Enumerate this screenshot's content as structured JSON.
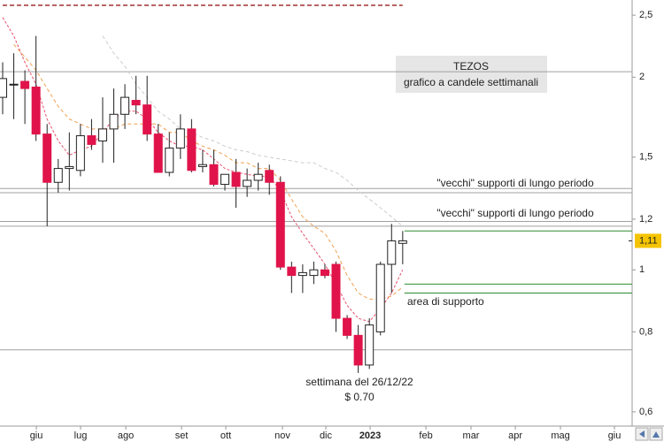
{
  "chart_data": {
    "type": "candlestick",
    "title": "TEZOS",
    "subtitle": "grafico a candele settimanali",
    "annotations": [
      "\"vecchi\" supporti di lungo periodo",
      "\"vecchi\" supporti di lungo periodo",
      "area di supporto",
      "settimana del 26/12/22",
      "$ 0.70"
    ],
    "categories": [
      null,
      null,
      null,
      null,
      null,
      null,
      null,
      null,
      null,
      null,
      null,
      null,
      null,
      null,
      null,
      null,
      null,
      null,
      null,
      null,
      null,
      null,
      null,
      null,
      null,
      null,
      null,
      null,
      null,
      null,
      null,
      null,
      null,
      null,
      null,
      null,
      null
    ],
    "open": [
      1.86,
      1.95,
      1.97,
      1.93,
      1.63,
      1.37,
      1.44,
      1.43,
      1.62,
      1.59,
      1.66,
      1.75,
      1.84,
      1.81,
      1.63,
      1.42,
      1.55,
      1.66,
      1.45,
      1.46,
      1.36,
      1.42,
      1.35,
      1.38,
      1.43,
      1.37,
      1.01,
      0.98,
      0.98,
      1.0,
      1.02,
      0.84,
      0.79,
      0.71,
      0.8,
      1.02,
      1.1
    ],
    "high": [
      2.11,
      2.18,
      2.05,
      2.32,
      1.69,
      1.49,
      1.64,
      1.69,
      1.72,
      1.86,
      1.92,
      1.95,
      2.01,
      2.01,
      1.69,
      1.64,
      1.75,
      1.72,
      1.54,
      1.54,
      1.41,
      1.49,
      1.44,
      1.47,
      1.46,
      1.4,
      1.03,
      1.02,
      1.03,
      1.02,
      1.03,
      0.85,
      0.82,
      0.84,
      1.03,
      1.18,
      1.15
    ],
    "low": [
      1.75,
      1.72,
      1.69,
      1.59,
      1.17,
      1.32,
      1.33,
      1.4,
      1.54,
      1.47,
      1.47,
      1.66,
      1.75,
      1.59,
      1.42,
      1.4,
      1.49,
      1.42,
      1.42,
      1.35,
      1.33,
      1.25,
      1.3,
      1.33,
      1.31,
      1.0,
      0.92,
      0.92,
      0.95,
      0.97,
      0.8,
      0.78,
      0.69,
      0.7,
      0.79,
      0.92,
      1.02
    ],
    "close": [
      1.99,
      1.95,
      1.92,
      1.63,
      1.37,
      1.44,
      1.45,
      1.62,
      1.57,
      1.66,
      1.75,
      1.86,
      1.81,
      1.63,
      1.42,
      1.55,
      1.66,
      1.43,
      1.46,
      1.36,
      1.41,
      1.35,
      1.38,
      1.41,
      1.37,
      1.01,
      0.98,
      0.99,
      1.0,
      0.98,
      0.84,
      0.79,
      0.71,
      0.82,
      1.02,
      1.11,
      1.11
    ],
    "up_color": "#ffffff",
    "down_color": "#e0144a",
    "series": [
      {
        "color": "#e8506e",
        "values": [
          2.48,
          2.32,
          2.11,
          1.95,
          1.72,
          1.59,
          1.51,
          1.54,
          1.56,
          1.64,
          1.72,
          1.77,
          1.77,
          1.72,
          1.64,
          1.59,
          1.56,
          1.56,
          1.54,
          1.49,
          1.44,
          1.42,
          1.41,
          1.4,
          1.4,
          1.33,
          1.21,
          1.14,
          1.08,
          1.02,
          0.95,
          0.88,
          0.84,
          0.83,
          0.87,
          0.92,
          1.0
        ]
      },
      {
        "color": "#f0a050",
        "values": [
          null,
          2.25,
          2.15,
          2.05,
          1.92,
          1.8,
          1.72,
          1.69,
          1.66,
          1.66,
          1.66,
          1.69,
          1.69,
          1.69,
          1.69,
          1.64,
          1.64,
          1.59,
          1.56,
          1.54,
          1.51,
          1.47,
          1.47,
          1.44,
          1.44,
          1.38,
          1.29,
          1.21,
          1.17,
          1.14,
          1.07,
          0.98,
          0.92,
          0.9,
          0.9,
          0.91,
          0.94
        ]
      },
      {
        "color": "#cccccc",
        "values": [
          null,
          null,
          null,
          null,
          null,
          null,
          null,
          null,
          null,
          2.32,
          2.18,
          2.08,
          1.95,
          1.86,
          1.77,
          1.72,
          1.66,
          1.64,
          1.61,
          1.59,
          1.56,
          1.54,
          1.53,
          1.51,
          1.5,
          1.49,
          1.48,
          1.47,
          1.47,
          1.44,
          1.42,
          1.38,
          1.33,
          1.29,
          1.25,
          1.21,
          1.17
        ]
      },
      {
        "color": "#a03030",
        "values": [
          2.59,
          2.59,
          2.59,
          2.59,
          2.59,
          2.59,
          2.59,
          2.59,
          2.59,
          2.59,
          2.59,
          2.59,
          2.59,
          2.59,
          2.59,
          2.59,
          2.59,
          2.59,
          2.59,
          2.59,
          2.59,
          2.59,
          2.59,
          2.59,
          2.59,
          2.59,
          2.59,
          2.59,
          2.59,
          2.59,
          2.59,
          2.59,
          2.59,
          2.59,
          2.59,
          2.59,
          2.59
        ]
      }
    ],
    "levels": [
      2.04,
      1.34,
      1.32,
      1.19,
      1.17,
      0.75
    ],
    "level_color": "#a0a0a0",
    "support_levels": [
      1.15,
      0.95,
      0.92
    ],
    "support_color": "#2e8b2e",
    "last_price": {
      "value": 1.11,
      "label": "1,11"
    },
    "log_scale": true,
    "xlim": [
      -0.24,
      56.65
    ],
    "xticks": [
      {
        "value": 3.03,
        "label": "giu"
      },
      {
        "value": 7.01,
        "label": "lug"
      },
      {
        "value": 11.08,
        "label": "ago"
      },
      {
        "value": 16.1,
        "label": "set"
      },
      {
        "value": 20.08,
        "label": "ott"
      },
      {
        "value": 25.18,
        "label": "nov"
      },
      {
        "value": 29.08,
        "label": "dic"
      },
      {
        "value": 33.07,
        "label": "2023"
      },
      {
        "value": 38.09,
        "label": "feb"
      },
      {
        "value": 42.15,
        "label": "mar"
      },
      {
        "value": 46.14,
        "label": "apr"
      },
      {
        "value": 50.2,
        "label": "mag"
      },
      {
        "value": 55.06,
        "label": "giu"
      }
    ],
    "ylim": [
      0.57,
      2.64
    ],
    "yticks": [
      {
        "value": 2.5,
        "label": "2,5"
      },
      2,
      {
        "value": 1.5,
        "label": "1,5"
      },
      {
        "value": 1.2,
        "label": "1,2"
      },
      1,
      {
        "value": 0.8,
        "label": "0,8"
      },
      {
        "value": 0.6,
        "label": "0,6"
      }
    ]
  }
}
